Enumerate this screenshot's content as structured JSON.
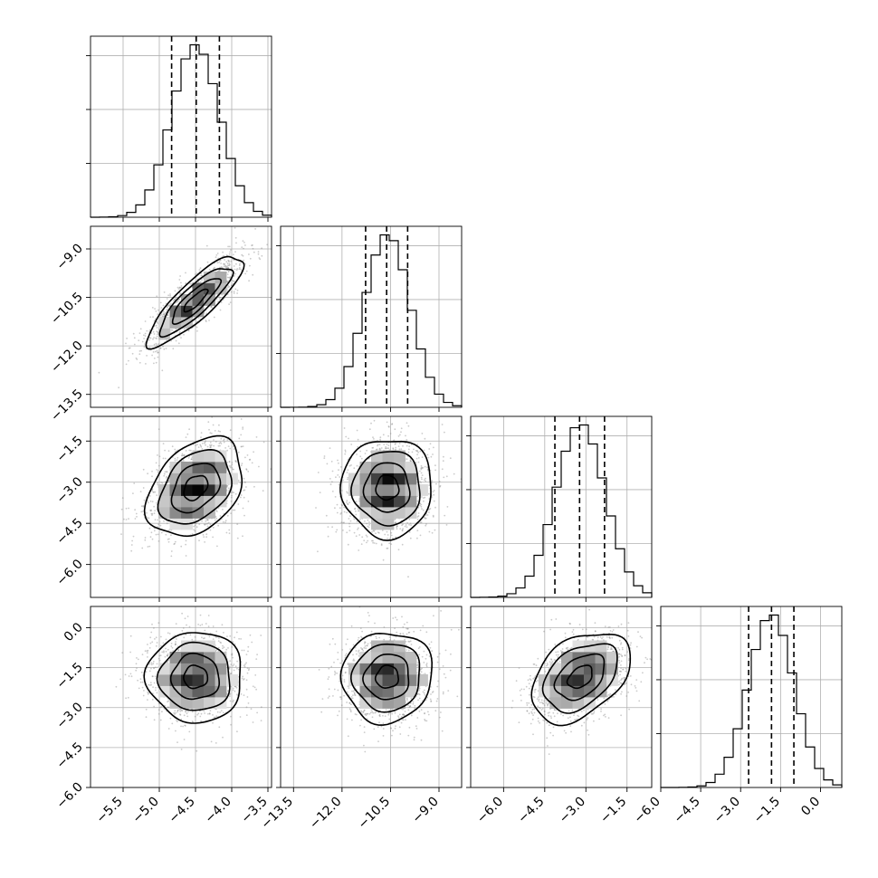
{
  "chart_data": {
    "type": "corner",
    "grid": true,
    "params": [
      {
        "range": [
          -5.95,
          -3.45
        ],
        "ticks": [
          -5.5,
          -5.0,
          -4.5,
          -4.0,
          -3.5
        ],
        "labels": [
          "−5.5",
          "−5.0",
          "−4.5",
          "−4.0",
          "−3.5"
        ],
        "quantiles": [
          -4.83,
          -4.49,
          -4.17
        ],
        "mean": -4.5,
        "sd": 0.33
      },
      {
        "range": [
          -13.9,
          -8.3
        ],
        "ticks": [
          -13.5,
          -12.0,
          -10.5,
          -9.0
        ],
        "labels": [
          "−13.5",
          "−12.0",
          "−10.5",
          "−9.0"
        ],
        "quantiles": [
          -11.27,
          -10.62,
          -9.97
        ],
        "mean": -10.6,
        "sd": 0.7
      },
      {
        "range": [
          -7.2,
          -0.6
        ],
        "ticks": [
          -6.0,
          -4.5,
          -3.0,
          -1.5
        ],
        "labels": [
          "−6.0",
          "−4.5",
          "−3.0",
          "−1.5"
        ],
        "quantiles": [
          -4.13,
          -3.23,
          -2.32
        ],
        "mean": -3.2,
        "sd": 0.9
      },
      {
        "range": [
          -6.0,
          0.8
        ],
        "ticks": [
          -6.0,
          -4.5,
          -3.0,
          -1.5,
          0.0
        ],
        "labels": [
          "−6.0",
          "−4.5",
          "−3.0",
          "−1.5",
          "0.0"
        ],
        "quantiles": [
          -2.7,
          -1.84,
          -1.0
        ],
        "mean": -1.85,
        "sd": 0.85
      }
    ],
    "pairs": [
      {
        "row": 1,
        "col": 0,
        "corr": 0.85
      },
      {
        "row": 2,
        "col": 0,
        "corr": 0.35
      },
      {
        "row": 2,
        "col": 1,
        "corr": 0.0
      },
      {
        "row": 3,
        "col": 0,
        "corr": 0.0
      },
      {
        "row": 3,
        "col": 1,
        "corr": 0.05
      },
      {
        "row": 3,
        "col": 2,
        "corr": 0.4
      }
    ]
  }
}
